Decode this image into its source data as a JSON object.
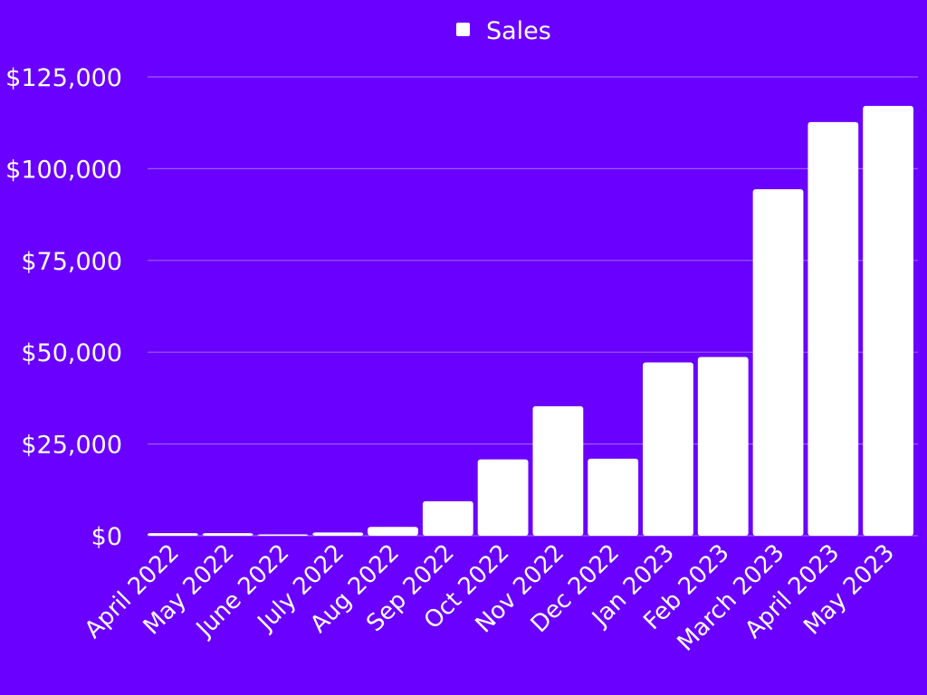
{
  "colors": {
    "background": "#6a00ff",
    "bar": "#ffffff",
    "grid": "#9a5cff",
    "text": "#ffffff"
  },
  "chart_data": {
    "type": "bar",
    "title": "",
    "xlabel": "",
    "ylabel": "",
    "legend": {
      "position": "top-center",
      "entries": [
        "Sales"
      ]
    },
    "categories": [
      "April 2022",
      "May 2022",
      "June 2022",
      "July 2022",
      "Aug 2022",
      "Sep 2022",
      "Oct 2022",
      "Nov 2022",
      "Dec 2022",
      "Jan 2023",
      "Feb 2023",
      "March 2023",
      "April 2023",
      "May 2023"
    ],
    "series": [
      {
        "name": "Sales",
        "values": [
          700,
          700,
          200,
          900,
          2400,
          9400,
          20800,
          35300,
          21000,
          47200,
          48700,
          94400,
          112700,
          117100
        ]
      }
    ],
    "ylim": [
      0,
      125000
    ],
    "yticks": [
      0,
      25000,
      50000,
      75000,
      100000,
      125000
    ],
    "ytick_labels": [
      "$0",
      "$25,000",
      "$50,000",
      "$75,000",
      "$100,000",
      "$125,000"
    ],
    "grid": true
  }
}
